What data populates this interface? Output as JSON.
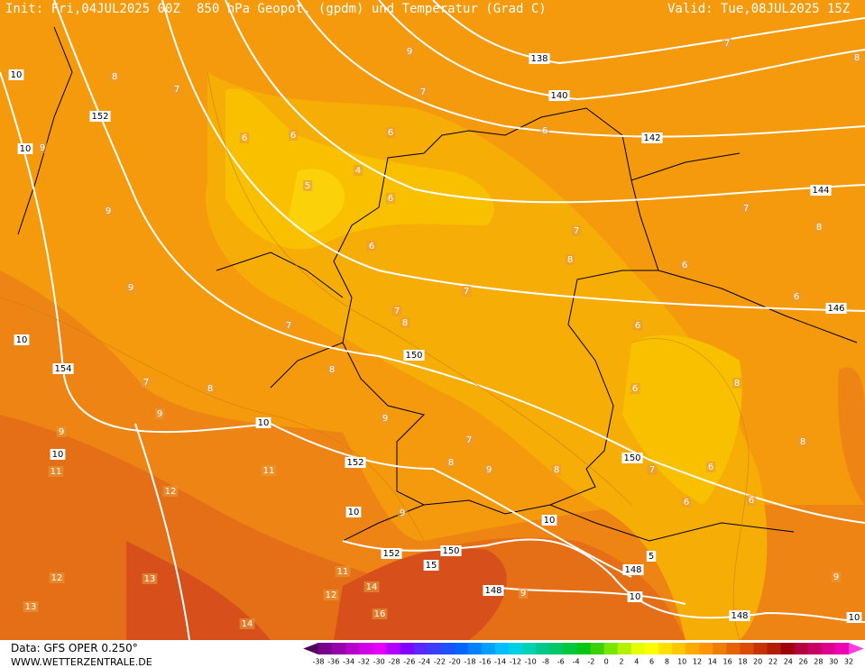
{
  "header": {
    "init": "Init: Fri,04JUL2025 00Z",
    "title": "850 hPa Geopot. (gpdm) und Temperatur (Grad C)",
    "valid": "Valid: Tue,08JUL2025 15Z"
  },
  "footer": {
    "data": "Data: GFS OPER 0.250°",
    "site": "WWW.WETTERZENTRALE.DE"
  },
  "map": {
    "geopotential_labels": [
      10,
      152,
      10,
      10,
      154,
      10,
      10,
      152,
      10,
      150,
      138,
      140,
      142,
      144,
      146,
      150,
      10,
      152,
      150,
      15,
      148,
      148,
      10,
      5,
      148,
      10
    ],
    "temperature_labels": [
      8,
      7,
      6,
      6,
      9,
      9,
      9,
      4,
      5,
      6,
      6,
      9,
      7,
      6,
      7,
      7,
      8,
      7,
      6,
      7,
      8,
      7,
      8,
      7,
      8,
      9,
      9,
      11,
      11,
      12,
      9,
      7,
      8,
      9,
      8,
      6,
      6,
      8,
      6,
      6,
      8,
      7,
      8,
      6,
      7,
      6,
      6,
      9,
      12,
      13,
      11,
      12,
      14,
      13,
      14,
      16,
      9,
      9,
      8
    ]
  },
  "legend": {
    "labels": [
      -38,
      -36,
      -34,
      -32,
      -30,
      -28,
      -26,
      -24,
      -22,
      -20,
      -18,
      -16,
      -14,
      -12,
      -10,
      -8,
      -6,
      -4,
      -2,
      0,
      2,
      4,
      6,
      8,
      10,
      12,
      14,
      16,
      18,
      20,
      22,
      24,
      26,
      28,
      30,
      32
    ],
    "colors": [
      "#50005a",
      "#78008c",
      "#9600aa",
      "#b400c8",
      "#d200e6",
      "#e600ff",
      "#b400ff",
      "#8200ff",
      "#5a28ff",
      "#3c3cff",
      "#1e50ff",
      "#0064ff",
      "#0082ff",
      "#00a0ff",
      "#00beff",
      "#00d2e6",
      "#00d2b4",
      "#00c88c",
      "#00c864",
      "#00c83c",
      "#00c814",
      "#3cd200",
      "#78e600",
      "#b4f000",
      "#e6ff00",
      "#ffff00",
      "#ffe100",
      "#ffc800",
      "#ffaa00",
      "#ff9600",
      "#f07d00",
      "#e66400",
      "#dc4b00",
      "#c83200",
      "#b41e00",
      "#a0000a",
      "#b4003c",
      "#c80064",
      "#dc008c",
      "#f000b4",
      "#ff3cdc"
    ]
  }
}
